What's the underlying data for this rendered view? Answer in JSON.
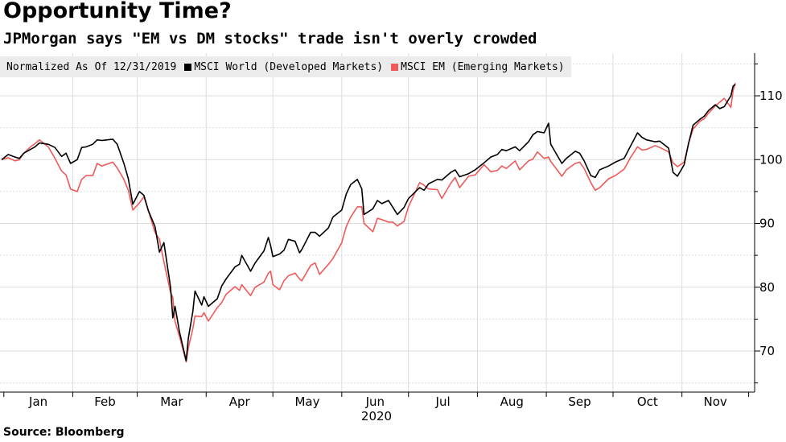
{
  "title": "Opportunity Time?",
  "subtitle": "JPMorgan says \"EM vs DM stocks\" trade isn't overly crowded",
  "source": "Source: Bloomberg",
  "legend": {
    "note": "Normalized As Of 12/31/2019",
    "items": [
      {
        "label": "MSCI World (Developed Markets)",
        "color": "#000000"
      },
      {
        "label": "MSCI EM (Emerging Markets)",
        "color": "#f0595a"
      }
    ]
  },
  "chart_data": {
    "type": "line",
    "xlabel": "2020",
    "ylabel": "",
    "ylim": [
      63,
      116
    ],
    "yticks": [
      70,
      80,
      90,
      100,
      110
    ],
    "month_labels": [
      "Jan",
      "Feb",
      "Mar",
      "Apr",
      "May",
      "Jun",
      "Jul",
      "Aug",
      "Sep",
      "Oct",
      "Nov"
    ],
    "x_start": "2019-12-31",
    "x_end": "2020-11-25",
    "grid": true,
    "axis_position": "right",
    "legend_position": "top-left",
    "series": [
      {
        "name": "MSCI World (Developed Markets)",
        "color": "#000000",
        "points": [
          [
            "2019-12-31",
            100.0
          ],
          [
            "2020-01-03",
            100.8
          ],
          [
            "2020-01-06",
            100.4
          ],
          [
            "2020-01-08",
            100.2
          ],
          [
            "2020-01-10",
            101.0
          ],
          [
            "2020-01-13",
            101.6
          ],
          [
            "2020-01-15",
            102.0
          ],
          [
            "2020-01-17",
            102.6
          ],
          [
            "2020-01-21",
            102.4
          ],
          [
            "2020-01-24",
            101.9
          ],
          [
            "2020-01-27",
            100.5
          ],
          [
            "2020-01-29",
            101.0
          ],
          [
            "2020-01-31",
            99.4
          ],
          [
            "2020-02-03",
            100.0
          ],
          [
            "2020-02-05",
            101.9
          ],
          [
            "2020-02-07",
            102.0
          ],
          [
            "2020-02-10",
            102.4
          ],
          [
            "2020-02-12",
            103.1
          ],
          [
            "2020-02-14",
            103.0
          ],
          [
            "2020-02-19",
            103.2
          ],
          [
            "2020-02-21",
            102.4
          ],
          [
            "2020-02-24",
            99.4
          ],
          [
            "2020-02-26",
            97.0
          ],
          [
            "2020-02-28",
            93.0
          ],
          [
            "2020-03-02",
            95.0
          ],
          [
            "2020-03-04",
            94.4
          ],
          [
            "2020-03-06",
            92.0
          ],
          [
            "2020-03-09",
            89.5
          ],
          [
            "2020-03-11",
            85.5
          ],
          [
            "2020-03-13",
            87.0
          ],
          [
            "2020-03-16",
            80.0
          ],
          [
            "2020-03-17",
            75.2
          ],
          [
            "2020-03-18",
            77.0
          ],
          [
            "2020-03-20",
            73.0
          ],
          [
            "2020-03-23",
            68.5
          ],
          [
            "2020-03-24",
            72.0
          ],
          [
            "2020-03-26",
            76.2
          ],
          [
            "2020-03-27",
            79.4
          ],
          [
            "2020-03-30",
            77.2
          ],
          [
            "2020-03-31",
            78.5
          ],
          [
            "2020-04-02",
            77.0
          ],
          [
            "2020-04-06",
            78.2
          ],
          [
            "2020-04-08",
            80.2
          ],
          [
            "2020-04-10",
            81.3
          ],
          [
            "2020-04-14",
            83.2
          ],
          [
            "2020-04-16",
            83.6
          ],
          [
            "2020-04-17",
            85.0
          ],
          [
            "2020-04-21",
            82.5
          ],
          [
            "2020-04-23",
            83.8
          ],
          [
            "2020-04-27",
            85.7
          ],
          [
            "2020-04-29",
            87.8
          ],
          [
            "2020-04-30",
            86.5
          ],
          [
            "2020-05-01",
            84.8
          ],
          [
            "2020-05-04",
            85.2
          ],
          [
            "2020-05-06",
            85.8
          ],
          [
            "2020-05-08",
            87.5
          ],
          [
            "2020-05-11",
            87.2
          ],
          [
            "2020-05-13",
            85.4
          ],
          [
            "2020-05-14",
            85.9
          ],
          [
            "2020-05-18",
            88.6
          ],
          [
            "2020-05-20",
            88.6
          ],
          [
            "2020-05-22",
            88.0
          ],
          [
            "2020-05-26",
            89.3
          ],
          [
            "2020-05-28",
            91.0
          ],
          [
            "2020-06-01",
            92.1
          ],
          [
            "2020-06-03",
            94.6
          ],
          [
            "2020-06-05",
            96.1
          ],
          [
            "2020-06-08",
            96.9
          ],
          [
            "2020-06-10",
            95.4
          ],
          [
            "2020-06-11",
            91.4
          ],
          [
            "2020-06-15",
            92.3
          ],
          [
            "2020-06-17",
            93.6
          ],
          [
            "2020-06-19",
            93.1
          ],
          [
            "2020-06-22",
            93.6
          ],
          [
            "2020-06-24",
            92.5
          ],
          [
            "2020-06-26",
            91.4
          ],
          [
            "2020-06-29",
            92.5
          ],
          [
            "2020-07-01",
            93.9
          ],
          [
            "2020-07-06",
            95.6
          ],
          [
            "2020-07-08",
            95.2
          ],
          [
            "2020-07-10",
            96.2
          ],
          [
            "2020-07-14",
            96.9
          ],
          [
            "2020-07-16",
            96.8
          ],
          [
            "2020-07-20",
            98.0
          ],
          [
            "2020-07-22",
            98.4
          ],
          [
            "2020-07-24",
            97.3
          ],
          [
            "2020-07-28",
            97.8
          ],
          [
            "2020-07-31",
            98.4
          ],
          [
            "2020-08-04",
            99.5
          ],
          [
            "2020-08-07",
            100.4
          ],
          [
            "2020-08-10",
            100.8
          ],
          [
            "2020-08-12",
            101.6
          ],
          [
            "2020-08-14",
            101.4
          ],
          [
            "2020-08-18",
            102.0
          ],
          [
            "2020-08-20",
            101.4
          ],
          [
            "2020-08-24",
            102.8
          ],
          [
            "2020-08-26",
            103.9
          ],
          [
            "2020-08-28",
            104.4
          ],
          [
            "2020-08-31",
            104.2
          ],
          [
            "2020-09-02",
            105.7
          ],
          [
            "2020-09-03",
            102.4
          ],
          [
            "2020-09-08",
            99.4
          ],
          [
            "2020-09-10",
            100.2
          ],
          [
            "2020-09-14",
            101.3
          ],
          [
            "2020-09-16",
            101.0
          ],
          [
            "2020-09-18",
            99.8
          ],
          [
            "2020-09-21",
            97.5
          ],
          [
            "2020-09-23",
            97.2
          ],
          [
            "2020-09-25",
            98.4
          ],
          [
            "2020-09-29",
            99.0
          ],
          [
            "2020-10-02",
            99.6
          ],
          [
            "2020-10-06",
            100.2
          ],
          [
            "2020-10-09",
            102.2
          ],
          [
            "2020-10-12",
            104.2
          ],
          [
            "2020-10-14",
            103.5
          ],
          [
            "2020-10-16",
            103.1
          ],
          [
            "2020-10-20",
            102.8
          ],
          [
            "2020-10-22",
            102.9
          ],
          [
            "2020-10-26",
            101.8
          ],
          [
            "2020-10-28",
            98.0
          ],
          [
            "2020-10-30",
            97.4
          ],
          [
            "2020-11-02",
            99.2
          ],
          [
            "2020-11-04",
            102.6
          ],
          [
            "2020-11-06",
            105.4
          ],
          [
            "2020-11-09",
            106.3
          ],
          [
            "2020-11-11",
            106.8
          ],
          [
            "2020-11-13",
            107.7
          ],
          [
            "2020-11-16",
            108.6
          ],
          [
            "2020-11-18",
            108.0
          ],
          [
            "2020-11-20",
            108.3
          ],
          [
            "2020-11-23",
            110.0
          ],
          [
            "2020-11-24",
            111.5
          ],
          [
            "2020-11-25",
            111.8
          ]
        ]
      },
      {
        "name": "MSCI EM (Emerging Markets)",
        "color": "#f0595a",
        "points": [
          [
            "2019-12-31",
            100.0
          ],
          [
            "2020-01-03",
            100.3
          ],
          [
            "2020-01-06",
            99.8
          ],
          [
            "2020-01-08",
            100.0
          ],
          [
            "2020-01-10",
            101.0
          ],
          [
            "2020-01-13",
            102.0
          ],
          [
            "2020-01-15",
            102.5
          ],
          [
            "2020-01-17",
            103.1
          ],
          [
            "2020-01-21",
            102.0
          ],
          [
            "2020-01-24",
            100.2
          ],
          [
            "2020-01-27",
            98.2
          ],
          [
            "2020-01-29",
            97.6
          ],
          [
            "2020-01-31",
            95.4
          ],
          [
            "2020-02-03",
            95.0
          ],
          [
            "2020-02-05",
            96.9
          ],
          [
            "2020-02-07",
            97.5
          ],
          [
            "2020-02-10",
            97.5
          ],
          [
            "2020-02-12",
            99.4
          ],
          [
            "2020-02-14",
            99.0
          ],
          [
            "2020-02-19",
            99.6
          ],
          [
            "2020-02-21",
            98.7
          ],
          [
            "2020-02-24",
            96.9
          ],
          [
            "2020-02-26",
            95.2
          ],
          [
            "2020-02-28",
            92.1
          ],
          [
            "2020-03-02",
            93.2
          ],
          [
            "2020-03-04",
            94.2
          ],
          [
            "2020-03-06",
            92.0
          ],
          [
            "2020-03-09",
            88.6
          ],
          [
            "2020-03-11",
            87.5
          ],
          [
            "2020-03-13",
            84.0
          ],
          [
            "2020-03-16",
            79.2
          ],
          [
            "2020-03-17",
            78.4
          ],
          [
            "2020-03-18",
            74.6
          ],
          [
            "2020-03-20",
            72.3
          ],
          [
            "2020-03-23",
            68.3
          ],
          [
            "2020-03-24",
            70.5
          ],
          [
            "2020-03-26",
            73.5
          ],
          [
            "2020-03-27",
            75.5
          ],
          [
            "2020-03-30",
            75.4
          ],
          [
            "2020-03-31",
            76.0
          ],
          [
            "2020-04-02",
            74.7
          ],
          [
            "2020-04-06",
            76.8
          ],
          [
            "2020-04-08",
            77.6
          ],
          [
            "2020-04-10",
            78.9
          ],
          [
            "2020-04-14",
            80.1
          ],
          [
            "2020-04-16",
            79.5
          ],
          [
            "2020-04-17",
            80.4
          ],
          [
            "2020-04-21",
            78.7
          ],
          [
            "2020-04-23",
            80.0
          ],
          [
            "2020-04-27",
            80.8
          ],
          [
            "2020-04-29",
            82.2
          ],
          [
            "2020-04-30",
            82.5
          ],
          [
            "2020-05-01",
            80.4
          ],
          [
            "2020-05-04",
            79.6
          ],
          [
            "2020-05-06",
            81.0
          ],
          [
            "2020-05-08",
            81.8
          ],
          [
            "2020-05-11",
            82.2
          ],
          [
            "2020-05-13",
            81.3
          ],
          [
            "2020-05-14",
            81.0
          ],
          [
            "2020-05-18",
            83.4
          ],
          [
            "2020-05-20",
            83.8
          ],
          [
            "2020-05-22",
            82.0
          ],
          [
            "2020-05-26",
            83.6
          ],
          [
            "2020-05-28",
            84.5
          ],
          [
            "2020-06-01",
            87.0
          ],
          [
            "2020-06-03",
            89.5
          ],
          [
            "2020-06-05",
            91.0
          ],
          [
            "2020-06-08",
            92.6
          ],
          [
            "2020-06-10",
            92.6
          ],
          [
            "2020-06-11",
            90.0
          ],
          [
            "2020-06-15",
            88.7
          ],
          [
            "2020-06-17",
            90.8
          ],
          [
            "2020-06-19",
            90.6
          ],
          [
            "2020-06-22",
            90.2
          ],
          [
            "2020-06-24",
            90.2
          ],
          [
            "2020-06-26",
            89.6
          ],
          [
            "2020-06-29",
            90.3
          ],
          [
            "2020-07-01",
            92.6
          ],
          [
            "2020-07-06",
            96.4
          ],
          [
            "2020-07-08",
            96.0
          ],
          [
            "2020-07-10",
            95.4
          ],
          [
            "2020-07-14",
            95.3
          ],
          [
            "2020-07-16",
            93.9
          ],
          [
            "2020-07-20",
            96.3
          ],
          [
            "2020-07-22",
            97.2
          ],
          [
            "2020-07-24",
            95.6
          ],
          [
            "2020-07-28",
            97.4
          ],
          [
            "2020-07-31",
            97.6
          ],
          [
            "2020-08-04",
            99.2
          ],
          [
            "2020-08-07",
            98.1
          ],
          [
            "2020-08-10",
            98.3
          ],
          [
            "2020-08-12",
            99.0
          ],
          [
            "2020-08-14",
            98.6
          ],
          [
            "2020-08-18",
            99.8
          ],
          [
            "2020-08-20",
            98.4
          ],
          [
            "2020-08-24",
            99.8
          ],
          [
            "2020-08-26",
            100.1
          ],
          [
            "2020-08-28",
            101.2
          ],
          [
            "2020-08-31",
            100.2
          ],
          [
            "2020-09-02",
            100.4
          ],
          [
            "2020-09-03",
            99.7
          ],
          [
            "2020-09-08",
            97.4
          ],
          [
            "2020-09-10",
            98.4
          ],
          [
            "2020-09-14",
            99.4
          ],
          [
            "2020-09-16",
            99.6
          ],
          [
            "2020-09-18",
            98.6
          ],
          [
            "2020-09-21",
            96.4
          ],
          [
            "2020-09-23",
            95.2
          ],
          [
            "2020-09-25",
            95.6
          ],
          [
            "2020-09-29",
            97.0
          ],
          [
            "2020-10-02",
            97.5
          ],
          [
            "2020-10-06",
            98.5
          ],
          [
            "2020-10-09",
            100.4
          ],
          [
            "2020-10-12",
            102.0
          ],
          [
            "2020-10-14",
            101.5
          ],
          [
            "2020-10-16",
            101.6
          ],
          [
            "2020-10-20",
            102.2
          ],
          [
            "2020-10-22",
            101.9
          ],
          [
            "2020-10-26",
            101.2
          ],
          [
            "2020-10-28",
            99.5
          ],
          [
            "2020-10-30",
            98.9
          ],
          [
            "2020-11-02",
            99.6
          ],
          [
            "2020-11-04",
            102.6
          ],
          [
            "2020-11-06",
            104.8
          ],
          [
            "2020-11-09",
            106.0
          ],
          [
            "2020-11-11",
            106.4
          ],
          [
            "2020-11-13",
            107.3
          ],
          [
            "2020-11-16",
            108.4
          ],
          [
            "2020-11-18",
            109.0
          ],
          [
            "2020-11-20",
            109.6
          ],
          [
            "2020-11-23",
            108.2
          ],
          [
            "2020-11-24",
            110.8
          ],
          [
            "2020-11-25",
            112.0
          ]
        ]
      }
    ]
  }
}
